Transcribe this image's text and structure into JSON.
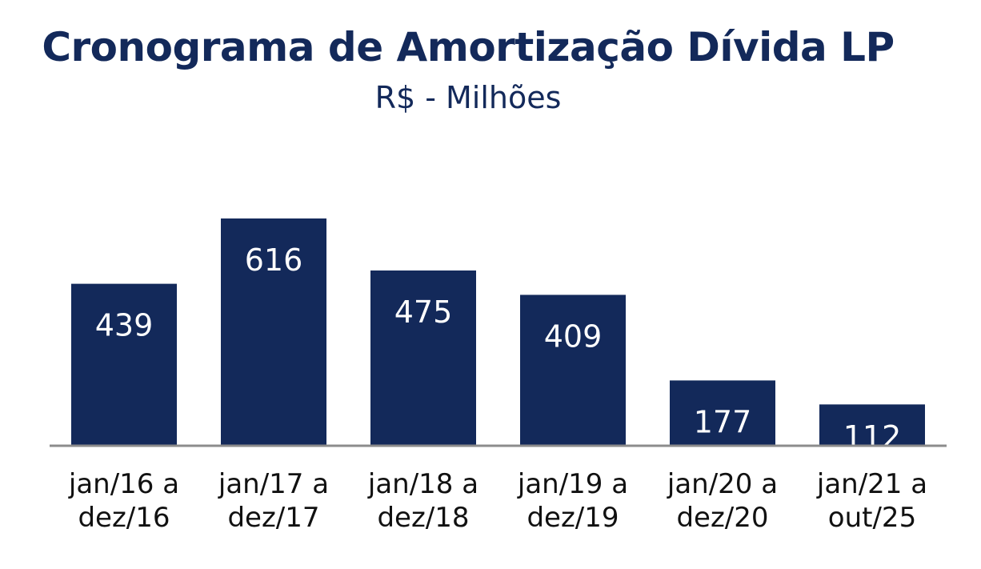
{
  "colors": {
    "bar": "#13295a",
    "title": "#13295a",
    "axis_line": "#8c8c8c",
    "label_text": "#ffffff",
    "category_text": "#111111"
  },
  "chart_data": {
    "type": "bar",
    "title": "Cronograma de Amortização Dívida LP",
    "subtitle": "R$ - Milhões",
    "xlabel": "",
    "ylabel": "",
    "categories": [
      [
        "jan/16 a",
        "dez/16"
      ],
      [
        "jan/17 a",
        "dez/17"
      ],
      [
        "jan/18 a",
        "dez/18"
      ],
      [
        "jan/19 a",
        "dez/19"
      ],
      [
        "jan/20 a",
        "dez/20"
      ],
      [
        "jan/21 a",
        "out/25"
      ]
    ],
    "values": [
      439,
      616,
      475,
      409,
      177,
      112
    ],
    "data_labels": true,
    "grid": false,
    "legend": "none",
    "ylim": [
      0,
      650
    ]
  }
}
